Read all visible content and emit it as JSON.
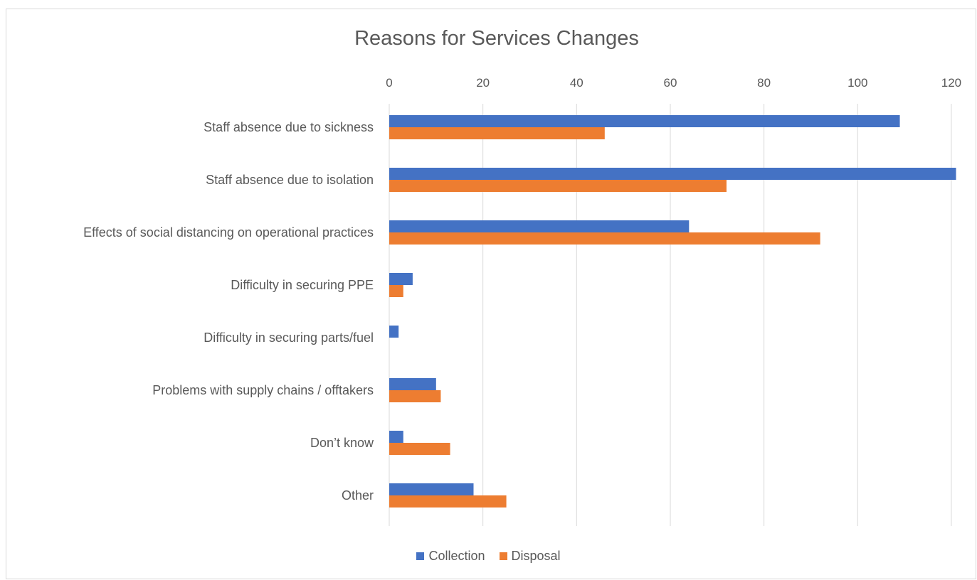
{
  "chart_data": {
    "type": "bar",
    "orientation": "horizontal",
    "title": "Reasons for Services Changes",
    "xlabel": "",
    "ylabel": "",
    "xlim": [
      0,
      120
    ],
    "x_ticks": [
      0,
      20,
      40,
      60,
      80,
      100,
      120
    ],
    "x_axis_position": "top",
    "grid": true,
    "legend_position": "bottom",
    "categories": [
      "Staff absence due to sickness",
      "Staff absence due to isolation",
      "Effects of social distancing on operational practices",
      "Difficulty in securing PPE",
      "Difficulty in securing parts/fuel",
      "Problems with supply chains / offtakers",
      "Don’t know",
      "Other"
    ],
    "series": [
      {
        "name": "Collection",
        "color": "#4472c4",
        "values": [
          109,
          121,
          64,
          5,
          2,
          10,
          3,
          18
        ]
      },
      {
        "name": "Disposal",
        "color": "#ed7d31",
        "values": [
          46,
          72,
          92,
          3,
          0,
          11,
          13,
          25
        ]
      }
    ]
  }
}
